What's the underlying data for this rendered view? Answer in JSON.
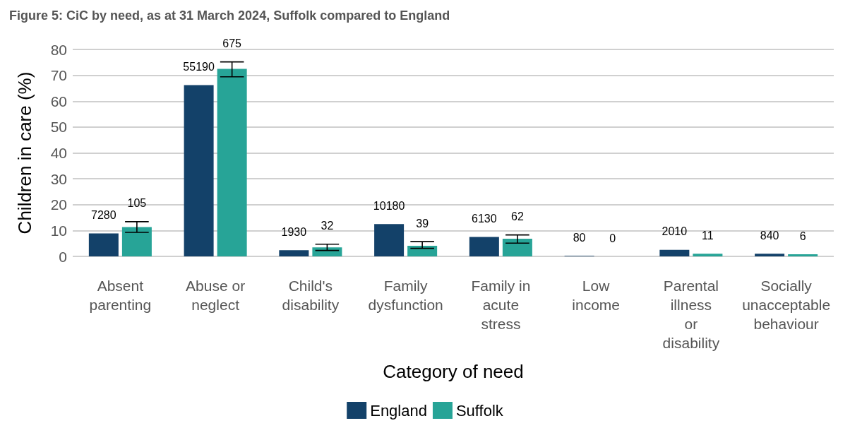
{
  "chart_data": {
    "type": "bar",
    "title": "Figure 5: CiC by need, as at 31 March 2024, Suffolk compared to England",
    "xlabel": "Category of need",
    "ylabel": "Children in care (%)",
    "categories": [
      "Absent parenting",
      "Abuse or neglect",
      "Child's disability",
      "Family dysfunction",
      "Family in acute stress",
      "Low income",
      "Parental illness or disability",
      "Socially unacceptable behaviour"
    ],
    "series": [
      {
        "name": "England",
        "color": "#134169",
        "values": [
          8.9,
          66.2,
          2.4,
          12.5,
          7.5,
          0.2,
          2.5,
          1.0
        ]
      },
      {
        "name": "Suffolk",
        "color": "#27a497",
        "values": [
          11.3,
          72.5,
          3.5,
          4.1,
          6.8,
          0,
          1.0,
          0.8
        ],
        "errors": [
          [
            9.3,
            13.4
          ],
          [
            69.4,
            75.2
          ],
          [
            2.3,
            4.7
          ],
          [
            3.1,
            5.7
          ],
          [
            5.1,
            8.3
          ],
          null,
          null,
          null
        ]
      }
    ],
    "annotations": [
      {
        "text": "7280",
        "x": "Absent parenting",
        "y": 8.9
      },
      {
        "text": "55190",
        "x": "Abuse or neglect",
        "y": 66.2
      },
      {
        "text": "1930",
        "x": "Child's disability",
        "y": 2.4
      },
      {
        "text": "10180",
        "x": "Family dysfunction",
        "y": 12.5
      },
      {
        "text": "6130",
        "x": "Family in acute stress",
        "y": 7.5
      },
      {
        "text": "80",
        "x": "Low income",
        "y": 0.2
      },
      {
        "text": "2010",
        "x": "Parental illness or disability",
        "y": 2.5
      },
      {
        "text": "840",
        "x": "Socially unacceptable behaviour",
        "y": 1.0
      },
      {
        "text": "105",
        "x": "Absent parenting",
        "y": 11.3
      },
      {
        "text": "675",
        "x": "Abuse or neglect",
        "y": 72.5
      },
      {
        "text": "32",
        "x": "Child's disability",
        "y": 3.5
      },
      {
        "text": "39",
        "x": "Family dysfunction",
        "y": 4.1
      },
      {
        "text": "62",
        "x": "Family in acute stress",
        "y": 6.8
      },
      {
        "text": "0",
        "x": "Low income",
        "y": 0
      },
      {
        "text": "11",
        "x": "Parental illness or disability",
        "y": 1.0
      },
      {
        "text": "6",
        "x": "Socially unacceptable behaviour",
        "y": 0.8
      }
    ],
    "ylim": [
      0,
      80
    ],
    "yticks": [
      0,
      10,
      20,
      30,
      40,
      50,
      60,
      70,
      80
    ],
    "grid": "y",
    "legend": "bottom"
  }
}
